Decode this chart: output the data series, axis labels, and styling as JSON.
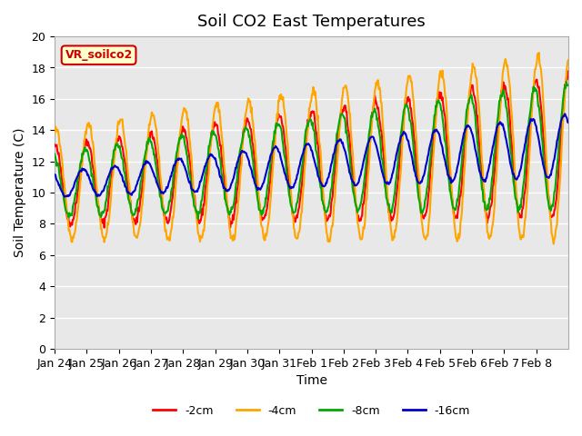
{
  "title": "Soil CO2 East Temperatures",
  "xlabel": "Time",
  "ylabel": "Soil Temperature (C)",
  "ylim": [
    0,
    20
  ],
  "bg_color": "#e8e8e8",
  "fig_bg": "#ffffff",
  "annotation_text": "VR_soilco2",
  "annotation_bg": "#ffffcc",
  "annotation_border": "#cc0000",
  "legend_labels": [
    "-2cm",
    "-4cm",
    "-8cm",
    "-16cm"
  ],
  "legend_colors": [
    "#ff0000",
    "#ffa500",
    "#00aa00",
    "#0000cc"
  ],
  "xtick_labels": [
    "Jan 24",
    "Jan 25",
    "Jan 26",
    "Jan 27",
    "Jan 28",
    "Jan 29",
    "Jan 30",
    "Jan 31",
    "Feb 1",
    "Feb 2",
    "Feb 3",
    "Feb 4",
    "Feb 5",
    "Feb 6",
    "Feb 7",
    "Feb 8"
  ],
  "grid_color": "#ffffff",
  "line_width": 1.5
}
